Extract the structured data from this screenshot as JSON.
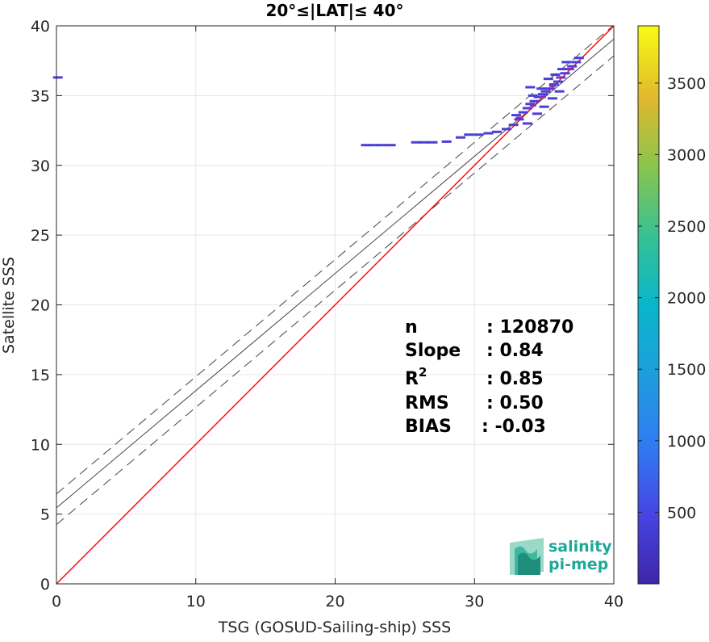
{
  "chart_data": {
    "type": "heatmap",
    "title": "20°≤|LAT|≤ 40°",
    "xlabel": "TSG (GOSUD-Sailing-ship) SSS",
    "ylabel": "Satellite SSS",
    "xlim": [
      0,
      40
    ],
    "ylim": [
      0,
      40
    ],
    "xticks": [
      "0",
      "10",
      "20",
      "30",
      "40"
    ],
    "yticks": [
      "0",
      "5",
      "10",
      "15",
      "20",
      "25",
      "30",
      "35",
      "40"
    ],
    "grid": true,
    "colorbar": {
      "range": [
        0,
        3900
      ],
      "ticks": [
        "500",
        "1000",
        "1500",
        "2000",
        "2500",
        "3000",
        "3500"
      ],
      "tick_values": [
        500,
        1000,
        1500,
        2000,
        2500,
        3000,
        3500
      ],
      "colormap": "parula"
    },
    "reference_line": {
      "slope": 1,
      "intercept": 0,
      "color": "#ff0000"
    },
    "fit_line": {
      "slope": 0.84,
      "intercept": 5.45,
      "color": "#444444"
    },
    "fit_band": {
      "upper_intercept": 6.45,
      "lower_intercept": 4.25,
      "style": "dashed"
    },
    "density_points": [
      {
        "x": 22.2,
        "y": 31.45
      },
      {
        "x": 22.8,
        "y": 31.45
      },
      {
        "x": 23.4,
        "y": 31.45
      },
      {
        "x": 24.0,
        "y": 31.45
      },
      {
        "x": 25.8,
        "y": 31.65
      },
      {
        "x": 26.4,
        "y": 31.65
      },
      {
        "x": 27.0,
        "y": 31.65
      },
      {
        "x": 28.0,
        "y": 31.7
      },
      {
        "x": 29.0,
        "y": 32.0
      },
      {
        "x": 29.6,
        "y": 32.2
      },
      {
        "x": 30.3,
        "y": 32.2
      },
      {
        "x": 31.0,
        "y": 32.3
      },
      {
        "x": 31.6,
        "y": 32.4
      },
      {
        "x": 32.3,
        "y": 32.6
      },
      {
        "x": 32.8,
        "y": 32.9
      },
      {
        "x": 33.2,
        "y": 33.3
      },
      {
        "x": 33.0,
        "y": 33.6
      },
      {
        "x": 33.5,
        "y": 33.8
      },
      {
        "x": 33.8,
        "y": 34.1
      },
      {
        "x": 34.0,
        "y": 34.4
      },
      {
        "x": 34.3,
        "y": 34.6
      },
      {
        "x": 34.6,
        "y": 34.9
      },
      {
        "x": 34.9,
        "y": 35.1
      },
      {
        "x": 35.1,
        "y": 35.3
      },
      {
        "x": 35.4,
        "y": 35.5
      },
      {
        "x": 35.7,
        "y": 35.8
      },
      {
        "x": 36.0,
        "y": 36.0
      },
      {
        "x": 36.2,
        "y": 36.3
      },
      {
        "x": 36.5,
        "y": 36.6
      },
      {
        "x": 36.8,
        "y": 36.9
      },
      {
        "x": 37.0,
        "y": 37.1
      },
      {
        "x": 37.3,
        "y": 37.4
      },
      {
        "x": 37.5,
        "y": 37.7
      },
      {
        "x": 34.2,
        "y": 35.0
      },
      {
        "x": 34.8,
        "y": 35.5
      },
      {
        "x": 35.3,
        "y": 36.2
      },
      {
        "x": 35.8,
        "y": 36.5
      },
      {
        "x": 36.3,
        "y": 36.9
      },
      {
        "x": 34.0,
        "y": 35.6
      },
      {
        "x": 35.0,
        "y": 34.2
      },
      {
        "x": 35.6,
        "y": 34.8
      },
      {
        "x": 36.1,
        "y": 35.3
      },
      {
        "x": 33.8,
        "y": 33.0
      },
      {
        "x": 34.5,
        "y": 33.7
      },
      {
        "x": 36.6,
        "y": 37.4
      },
      {
        "x": 0.1,
        "y": 36.3
      }
    ],
    "hot_points": [
      {
        "x": 33.2,
        "y": 33.4
      },
      {
        "x": 34.2,
        "y": 34.3
      },
      {
        "x": 34.9,
        "y": 34.9
      },
      {
        "x": 35.6,
        "y": 35.7
      },
      {
        "x": 36.2,
        "y": 36.3
      },
      {
        "x": 36.8,
        "y": 36.9
      }
    ]
  },
  "stats": [
    {
      "key": "n",
      "value": ": 120870"
    },
    {
      "key": "Slope",
      "value": ": 0.84"
    },
    {
      "key": "R",
      "sup": "2",
      "value": ": 0.85"
    },
    {
      "key": "RMS",
      "value": ": 0.50"
    },
    {
      "key": "BIAS",
      "value": ": -0.03"
    }
  ],
  "logo": {
    "line1": "salinity",
    "line2": "pi-mep"
  }
}
